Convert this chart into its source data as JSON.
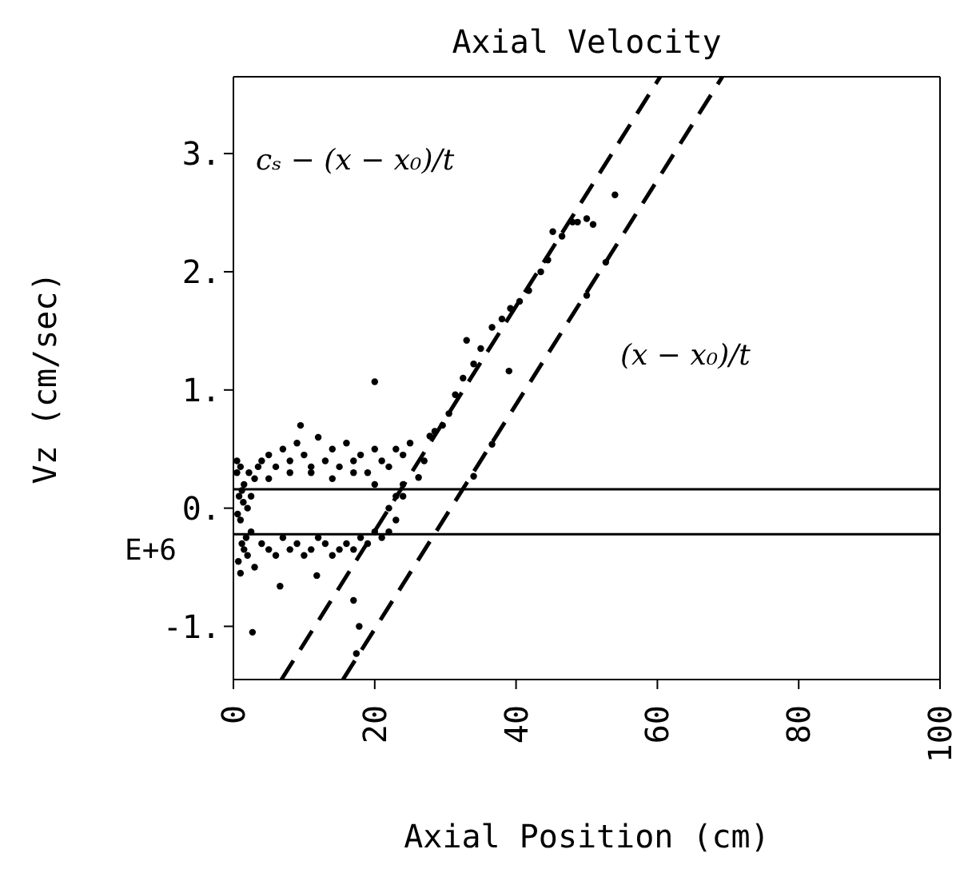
{
  "chart_data": {
    "type": "scatter",
    "title": "Axial Velocity",
    "xlabel": "Axial Position (cm)",
    "ylabel": "Vz (cm/sec)",
    "xlim": [
      0,
      100
    ],
    "xticks": [
      0,
      20,
      40,
      60,
      80,
      100
    ],
    "ylim": [
      -1.45,
      3.65
    ],
    "yticks": [
      {
        "value": -1,
        "label": "-1."
      },
      {
        "value": 0,
        "label": "0."
      },
      {
        "value": 1,
        "label": "1."
      },
      {
        "value": 2,
        "label": "2."
      },
      {
        "value": 3,
        "label": "3."
      }
    ],
    "marker": "circle",
    "ref_lines": [
      {
        "axis": "y",
        "value": 0.16,
        "color": "#000000"
      },
      {
        "axis": "y",
        "value": -0.22,
        "color": "#000000"
      }
    ],
    "annotations": [
      "cₛ − (x − x₀)/t",
      "(x − x₀)/t",
      "E+6"
    ],
    "series": [
      {
        "color": "#000000",
        "x": [
          0.5,
          0.8,
          1,
          1.2,
          1.5,
          2,
          2.5,
          3,
          0.5,
          1,
          1.5,
          2,
          2.5,
          0.6,
          1.2,
          1.8,
          0.7,
          1.4,
          2.2,
          3.5,
          4,
          5,
          6,
          7,
          8,
          9,
          10,
          11,
          12,
          13,
          14,
          15,
          16,
          17,
          18,
          19,
          20,
          21,
          22,
          23,
          24,
          25,
          4,
          5,
          6,
          7,
          8,
          9,
          10,
          11,
          12,
          13,
          14,
          15,
          16,
          17,
          18,
          19,
          20,
          21,
          22,
          23,
          24,
          5,
          8,
          11,
          14,
          17,
          20,
          23,
          26.2,
          27,
          27.8,
          28.5,
          29.6,
          30.5,
          31.4,
          32.5,
          34,
          35,
          36.6,
          38,
          39.2,
          40.5,
          41.8,
          43.5,
          44.5,
          45.2,
          46.5,
          48,
          48.7,
          50,
          50.9,
          9.5,
          20,
          33,
          39,
          52.7,
          50,
          54,
          36.6,
          34,
          2.7,
          17.4,
          17,
          11.8,
          6.6,
          17.8,
          3,
          1,
          24,
          22
        ],
        "values": [
          0.3,
          0.1,
          -0.1,
          -0.3,
          0.2,
          0,
          -0.2,
          0.25,
          0.4,
          0.35,
          -0.35,
          -0.4,
          0.1,
          -0.05,
          0.15,
          -0.25,
          -0.45,
          0.05,
          0.3,
          0.35,
          0.4,
          0.45,
          0.35,
          0.5,
          0.4,
          0.55,
          0.45,
          0.35,
          0.6,
          0.4,
          0.5,
          0.35,
          0.55,
          0.4,
          0.45,
          0.3,
          0.5,
          0.4,
          0.35,
          0.5,
          0.45,
          0.55,
          -0.3,
          -0.35,
          -0.4,
          -0.25,
          -0.35,
          -0.3,
          -0.4,
          -0.35,
          -0.25,
          -0.3,
          -0.4,
          -0.35,
          -0.3,
          -0.35,
          -0.25,
          -0.3,
          -0.2,
          -0.25,
          -0.2,
          -0.1,
          0.1,
          0.25,
          0.3,
          0.3,
          0.25,
          0.3,
          0.2,
          0.1,
          0.26,
          0.4,
          0.61,
          0.65,
          0.7,
          0.8,
          0.96,
          1.1,
          1.22,
          1.35,
          1.53,
          1.6,
          1.69,
          1.75,
          1.84,
          2.0,
          2.1,
          2.34,
          2.3,
          2.42,
          2.42,
          2.45,
          2.4,
          0.7,
          1.07,
          1.42,
          1.16,
          2.08,
          1.8,
          2.65,
          0.54,
          0.27,
          -1.05,
          -1.23,
          -0.78,
          -0.57,
          -0.66,
          -1.0,
          -0.5,
          -0.55,
          0.2,
          0.0
        ]
      },
      {
        "type": "line",
        "color": "#000000",
        "line_style": "dashed",
        "marker": "none",
        "x": [
          6.8,
          60.4
        ],
        "values": [
          -1.45,
          3.65
        ]
      },
      {
        "type": "line",
        "color": "#000000",
        "line_style": "dashed",
        "marker": "none",
        "x": [
          15.5,
          69.2
        ],
        "values": [
          -1.45,
          3.65
        ]
      }
    ]
  }
}
